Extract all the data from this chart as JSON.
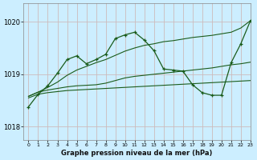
{
  "title": "Graphe pression niveau de la mer (hPa)",
  "bg_color": "#cceeff",
  "grid_color": "#aaddcc",
  "line_color": "#1a5c1a",
  "xlim": [
    -0.5,
    23
  ],
  "ylim": [
    1017.75,
    1020.35
  ],
  "yticks": [
    1018,
    1019,
    1020
  ],
  "xticks": [
    0,
    1,
    2,
    3,
    4,
    5,
    6,
    7,
    8,
    9,
    10,
    11,
    12,
    13,
    14,
    15,
    16,
    17,
    18,
    19,
    20,
    21,
    22,
    23
  ],
  "series_smooth1_x": [
    0,
    1,
    2,
    3,
    4,
    5,
    6,
    7,
    8,
    9,
    10,
    11,
    12,
    13,
    14,
    15,
    16,
    17,
    18,
    19,
    20,
    21,
    22,
    23
  ],
  "series_smooth1_y": [
    1018.55,
    1018.62,
    1018.65,
    1018.67,
    1018.69,
    1018.7,
    1018.71,
    1018.72,
    1018.73,
    1018.74,
    1018.75,
    1018.76,
    1018.77,
    1018.78,
    1018.79,
    1018.8,
    1018.81,
    1018.82,
    1018.83,
    1018.84,
    1018.85,
    1018.86,
    1018.87,
    1018.88
  ],
  "series_smooth2_x": [
    0,
    1,
    2,
    3,
    4,
    5,
    6,
    7,
    8,
    9,
    10,
    11,
    12,
    13,
    14,
    15,
    16,
    17,
    18,
    19,
    20,
    21,
    22,
    23
  ],
  "series_smooth2_y": [
    1018.58,
    1018.66,
    1018.7,
    1018.73,
    1018.76,
    1018.78,
    1018.79,
    1018.8,
    1018.83,
    1018.88,
    1018.93,
    1018.96,
    1018.98,
    1019.0,
    1019.02,
    1019.04,
    1019.06,
    1019.08,
    1019.1,
    1019.12,
    1019.15,
    1019.18,
    1019.2,
    1019.23
  ],
  "series_jagged_x": [
    0,
    1,
    2,
    3,
    4,
    5,
    6,
    7,
    8,
    9,
    10,
    11,
    12,
    13,
    14,
    15,
    16,
    17,
    18,
    19,
    20,
    21,
    22,
    23
  ],
  "series_jagged_y": [
    1018.38,
    1018.62,
    1018.78,
    1019.02,
    1019.28,
    1019.35,
    1019.2,
    1019.28,
    1019.38,
    1019.68,
    1019.75,
    1019.8,
    1019.65,
    1019.45,
    1019.1,
    1019.08,
    1019.06,
    1018.8,
    1018.65,
    1018.6,
    1018.6,
    1019.22,
    1019.58,
    1020.02
  ],
  "series_smooth_up_x": [
    0,
    1,
    2,
    3,
    4,
    5,
    6,
    7,
    8,
    9,
    10,
    11,
    12,
    13,
    14,
    15,
    16,
    17,
    18,
    19,
    20,
    21,
    22,
    23
  ],
  "series_smooth_up_y": [
    1018.58,
    1018.66,
    1018.75,
    1018.85,
    1018.98,
    1019.08,
    1019.15,
    1019.22,
    1019.28,
    1019.36,
    1019.44,
    1019.5,
    1019.55,
    1019.58,
    1019.62,
    1019.64,
    1019.67,
    1019.7,
    1019.72,
    1019.74,
    1019.77,
    1019.8,
    1019.88,
    1020.02
  ]
}
